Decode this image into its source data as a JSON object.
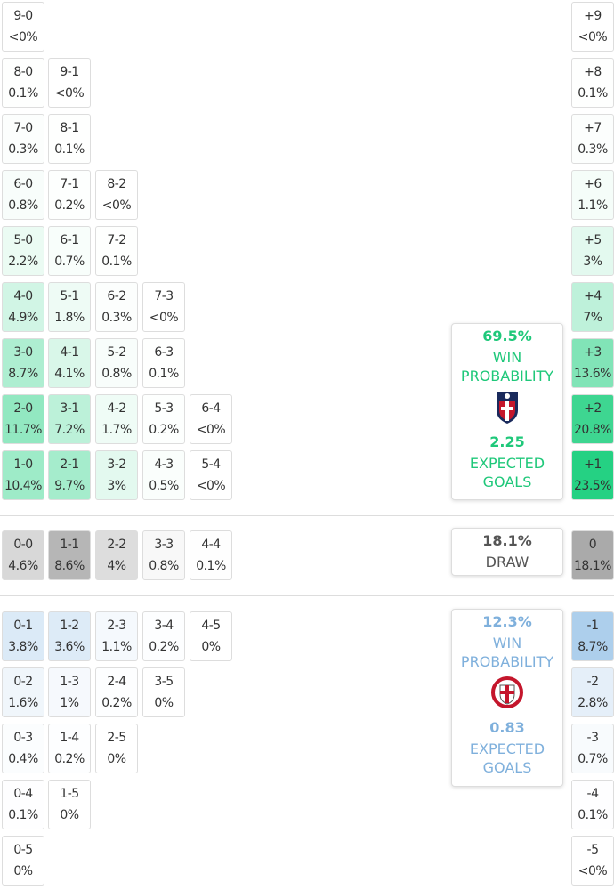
{
  "home": {
    "rows": [
      [
        {
          "score": "9-0",
          "pct": "<0%"
        }
      ],
      [
        {
          "score": "8-0",
          "pct": "0.1%"
        },
        {
          "score": "9-1",
          "pct": "<0%"
        }
      ],
      [
        {
          "score": "7-0",
          "pct": "0.3%"
        },
        {
          "score": "8-1",
          "pct": "0.1%"
        }
      ],
      [
        {
          "score": "6-0",
          "pct": "0.8%"
        },
        {
          "score": "7-1",
          "pct": "0.2%"
        },
        {
          "score": "8-2",
          "pct": "<0%"
        }
      ],
      [
        {
          "score": "5-0",
          "pct": "2.2%"
        },
        {
          "score": "6-1",
          "pct": "0.7%"
        },
        {
          "score": "7-2",
          "pct": "0.1%"
        }
      ],
      [
        {
          "score": "4-0",
          "pct": "4.9%"
        },
        {
          "score": "5-1",
          "pct": "1.8%"
        },
        {
          "score": "6-2",
          "pct": "0.3%"
        },
        {
          "score": "7-3",
          "pct": "<0%"
        }
      ],
      [
        {
          "score": "3-0",
          "pct": "8.7%"
        },
        {
          "score": "4-1",
          "pct": "4.1%"
        },
        {
          "score": "5-2",
          "pct": "0.8%"
        },
        {
          "score": "6-3",
          "pct": "0.1%"
        }
      ],
      [
        {
          "score": "2-0",
          "pct": "11.7%"
        },
        {
          "score": "3-1",
          "pct": "7.2%"
        },
        {
          "score": "4-2",
          "pct": "1.7%"
        },
        {
          "score": "5-3",
          "pct": "0.2%"
        },
        {
          "score": "6-4",
          "pct": "<0%"
        }
      ],
      [
        {
          "score": "1-0",
          "pct": "10.4%"
        },
        {
          "score": "2-1",
          "pct": "9.7%"
        },
        {
          "score": "3-2",
          "pct": "3%"
        },
        {
          "score": "4-3",
          "pct": "0.5%"
        },
        {
          "score": "5-4",
          "pct": "<0%"
        }
      ]
    ],
    "margins": [
      {
        "score": "+9",
        "pct": "<0%"
      },
      {
        "score": "+8",
        "pct": "0.1%"
      },
      {
        "score": "+7",
        "pct": "0.3%"
      },
      {
        "score": "+6",
        "pct": "1.1%"
      },
      {
        "score": "+5",
        "pct": "3%"
      },
      {
        "score": "+4",
        "pct": "7%"
      },
      {
        "score": "+3",
        "pct": "13.6%"
      },
      {
        "score": "+2",
        "pct": "20.8%"
      },
      {
        "score": "+1",
        "pct": "23.5%"
      }
    ],
    "card": {
      "win_pct": "69.5%",
      "win_label": "WIN PROBABILITY",
      "xg": "2.25",
      "xg_label": "EXPECTED GOALS"
    }
  },
  "draw": {
    "rows": [
      [
        {
          "score": "0-0",
          "pct": "4.6%"
        },
        {
          "score": "1-1",
          "pct": "8.6%"
        },
        {
          "score": "2-2",
          "pct": "4%"
        },
        {
          "score": "3-3",
          "pct": "0.8%"
        },
        {
          "score": "4-4",
          "pct": "0.1%"
        }
      ]
    ],
    "margins": [
      {
        "score": "0",
        "pct": "18.1%"
      }
    ],
    "card": {
      "pct": "18.1%",
      "label": "DRAW"
    }
  },
  "away": {
    "rows": [
      [
        {
          "score": "0-1",
          "pct": "3.8%"
        },
        {
          "score": "1-2",
          "pct": "3.6%"
        },
        {
          "score": "2-3",
          "pct": "1.1%"
        },
        {
          "score": "3-4",
          "pct": "0.2%"
        },
        {
          "score": "4-5",
          "pct": "0%"
        }
      ],
      [
        {
          "score": "0-2",
          "pct": "1.6%"
        },
        {
          "score": "1-3",
          "pct": "1%"
        },
        {
          "score": "2-4",
          "pct": "0.2%"
        },
        {
          "score": "3-5",
          "pct": "0%"
        }
      ],
      [
        {
          "score": "0-3",
          "pct": "0.4%"
        },
        {
          "score": "1-4",
          "pct": "0.2%"
        },
        {
          "score": "2-5",
          "pct": "0%"
        }
      ],
      [
        {
          "score": "0-4",
          "pct": "0.1%"
        },
        {
          "score": "1-5",
          "pct": "0%"
        }
      ],
      [
        {
          "score": "0-5",
          "pct": "0%"
        }
      ]
    ],
    "margins": [
      {
        "score": "-1",
        "pct": "8.7%"
      },
      {
        "score": "-2",
        "pct": "2.8%"
      },
      {
        "score": "-3",
        "pct": "0.7%"
      },
      {
        "score": "-4",
        "pct": "0.1%"
      },
      {
        "score": "-5",
        "pct": "<0%"
      }
    ],
    "card": {
      "win_pct": "12.3%",
      "win_label": "WIN PROBABILITY",
      "xg": "0.83",
      "xg_label": "EXPECTED GOALS"
    }
  }
}
